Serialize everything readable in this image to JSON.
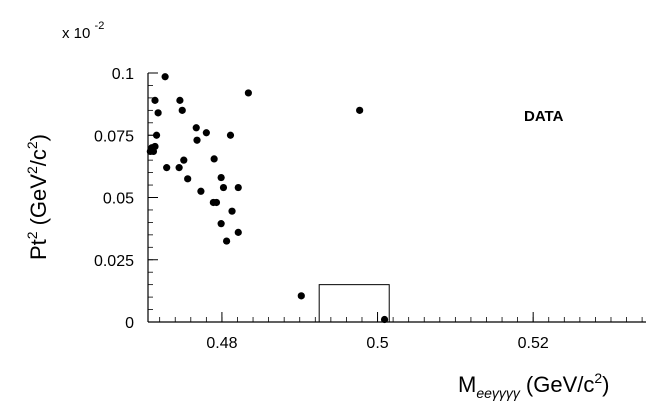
{
  "chart_data": {
    "type": "scatter",
    "xlabel_main": "M",
    "xlabel_sub": "eeγγγγ",
    "xlabel_units": "(GeV/c",
    "xlabel_units_sup": "2",
    "xlabel_units_end": ")",
    "ylabel_main": "Pt",
    "ylabel_sup": "2",
    "ylabel_units": "(GeV",
    "ylabel_units_sup1": "2",
    "ylabel_units_mid": "/c",
    "ylabel_units_sup2": "2",
    "ylabel_units_end": ")",
    "y_scale_prefix": "x 10",
    "y_scale_exp": "-2",
    "legend_label": "DATA",
    "xlim": [
      0.4705,
      0.5345
    ],
    "ylim": [
      0,
      0.1
    ],
    "x_ticks": [
      {
        "value": 0.48,
        "label": "0.48"
      },
      {
        "value": 0.5,
        "label": "0.5"
      },
      {
        "value": 0.52,
        "label": "0.52"
      }
    ],
    "y_ticks": [
      {
        "value": 0,
        "label": "0"
      },
      {
        "value": 0.025,
        "label": "0.025"
      },
      {
        "value": 0.05,
        "label": "0.05"
      },
      {
        "value": 0.075,
        "label": "0.075"
      },
      {
        "value": 0.1,
        "label": "0.1"
      }
    ],
    "signal_box": {
      "x": [
        0.4925,
        0.5015
      ],
      "y": [
        0,
        0.015
      ]
    },
    "points": [
      {
        "x": 0.4727,
        "y": 0.0985
      },
      {
        "x": 0.4714,
        "y": 0.089
      },
      {
        "x": 0.4746,
        "y": 0.089
      },
      {
        "x": 0.4749,
        "y": 0.085
      },
      {
        "x": 0.4718,
        "y": 0.084
      },
      {
        "x": 0.4834,
        "y": 0.092
      },
      {
        "x": 0.4977,
        "y": 0.085
      },
      {
        "x": 0.4767,
        "y": 0.078
      },
      {
        "x": 0.478,
        "y": 0.076
      },
      {
        "x": 0.4716,
        "y": 0.075
      },
      {
        "x": 0.4768,
        "y": 0.073
      },
      {
        "x": 0.4811,
        "y": 0.075
      },
      {
        "x": 0.471,
        "y": 0.07
      },
      {
        "x": 0.4714,
        "y": 0.0705
      },
      {
        "x": 0.4712,
        "y": 0.0685
      },
      {
        "x": 0.4708,
        "y": 0.0685
      },
      {
        "x": 0.4751,
        "y": 0.065
      },
      {
        "x": 0.479,
        "y": 0.0655
      },
      {
        "x": 0.4729,
        "y": 0.062
      },
      {
        "x": 0.4745,
        "y": 0.062
      },
      {
        "x": 0.4756,
        "y": 0.0575
      },
      {
        "x": 0.4799,
        "y": 0.058
      },
      {
        "x": 0.4802,
        "y": 0.054
      },
      {
        "x": 0.4821,
        "y": 0.054
      },
      {
        "x": 0.4773,
        "y": 0.0525
      },
      {
        "x": 0.4789,
        "y": 0.048
      },
      {
        "x": 0.4793,
        "y": 0.048
      },
      {
        "x": 0.4813,
        "y": 0.0445
      },
      {
        "x": 0.4799,
        "y": 0.0395
      },
      {
        "x": 0.4821,
        "y": 0.036
      },
      {
        "x": 0.4806,
        "y": 0.0325
      },
      {
        "x": 0.4902,
        "y": 0.0105
      },
      {
        "x": 0.5009,
        "y": 0.001
      }
    ]
  }
}
